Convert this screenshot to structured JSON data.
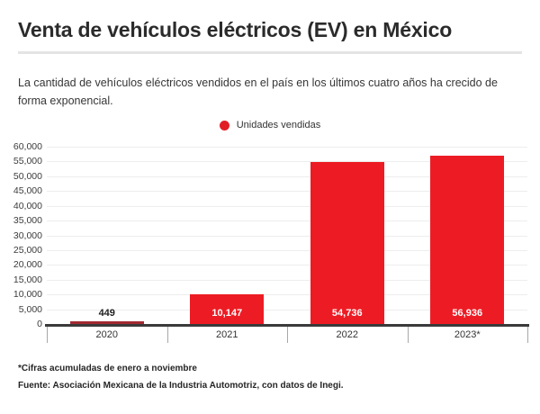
{
  "header": {
    "title": "Venta de vehículos eléctricos (EV) en México",
    "subtitle": "La cantidad de vehículos eléctricos vendidos en el país en los últimos cuatro años ha crecido de forma exponencial."
  },
  "legend": {
    "label": "Unidades vendidas",
    "dot_color": "#e21e25"
  },
  "colors": {
    "bar": "#ed1c24",
    "bar_small": "#a22a31",
    "axis": "#3a3a3a",
    "grid": "#ededed",
    "tick": "#a8a8a8",
    "value_label_light": "#ffffff",
    "value_label_dark": "#1f1f1f"
  },
  "footer": {
    "footnote": "*Cifras acumuladas de enero a noviembre",
    "source": "Fuente: Asociación Mexicana de la Industria Automotriz, con datos de Inegi."
  },
  "chart_data": {
    "type": "bar",
    "title": "",
    "series_name": "Unidades vendidas",
    "categories": [
      "2020",
      "2021",
      "2022",
      "2023*"
    ],
    "values": [
      449,
      10147,
      54736,
      56936
    ],
    "value_labels": [
      "449",
      "10,147",
      "54,736",
      "56,936"
    ],
    "xlabel": "",
    "ylabel": "",
    "ylim": [
      0,
      60000
    ],
    "ytick_step": 5000,
    "ytick_labels": [
      "0",
      "5,000",
      "10,000",
      "15,000",
      "20,000",
      "25,000",
      "30,000",
      "35,000",
      "40,000",
      "45,000",
      "50,000",
      "55,000",
      "60,000"
    ],
    "grid": true,
    "legend_position": "top-center"
  }
}
